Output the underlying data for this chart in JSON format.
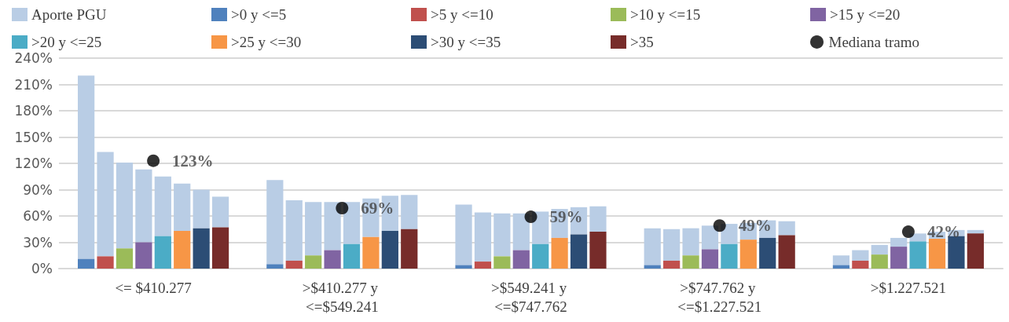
{
  "chart_data": {
    "type": "bar",
    "categories": [
      "<= $410.277",
      ">$410.277 y <=$549.241",
      ">$549.241 y <=$747.762",
      ">$747.762 y <=$1.227.521",
      ">$1.227.521"
    ],
    "ylim": [
      0,
      240
    ],
    "yticks": [
      {
        "value": 0,
        "label": "0%"
      },
      {
        "value": 30,
        "label": "30%"
      },
      {
        "value": 60,
        "label": "60%"
      },
      {
        "value": 90,
        "label": "90%"
      },
      {
        "value": 120,
        "label": "120%"
      },
      {
        "value": 150,
        "label": "150%"
      },
      {
        "value": 180,
        "label": "180%"
      },
      {
        "value": 210,
        "label": "210%"
      },
      {
        "value": 240,
        "label": "240%"
      }
    ],
    "grid": "y",
    "legend": "top",
    "series": [
      {
        "name": "Aporte PGU",
        "color": "#b9cde5",
        "base": [
          11,
          5,
          4,
          4,
          4
        ],
        "values": [
          209,
          96,
          69,
          42,
          11
        ]
      },
      {
        "color": "#b9cde5",
        "base": [
          14,
          9,
          8,
          9,
          9
        ],
        "values": [
          119,
          69,
          56,
          36,
          12
        ]
      },
      {
        "color": "#b9cde5",
        "base": [
          23,
          15,
          14,
          15,
          16
        ],
        "values": [
          98,
          61,
          49,
          31,
          11
        ]
      },
      {
        "color": "#b9cde5",
        "base": [
          30,
          21,
          21,
          22,
          25
        ],
        "values": [
          83,
          55,
          42,
          27,
          10
        ]
      },
      {
        "color": "#b9cde5",
        "base": [
          37,
          28,
          28,
          28,
          31
        ],
        "values": [
          68,
          48,
          37,
          23,
          9
        ]
      },
      {
        "color": "#b9cde5",
        "base": [
          43,
          36,
          35,
          33,
          34
        ],
        "values": [
          54,
          44,
          33,
          19,
          8
        ]
      },
      {
        "color": "#b9cde5",
        "base": [
          46,
          43,
          39,
          35,
          37
        ],
        "values": [
          44,
          40,
          31,
          20,
          7
        ]
      },
      {
        "color": "#b9cde5",
        "base": [
          47,
          45,
          42,
          38,
          40
        ],
        "values": [
          35,
          39,
          29,
          16,
          4
        ]
      },
      {
        "name": ">0 y <=5",
        "color": "#4f81bd",
        "values": [
          11,
          5,
          4,
          4,
          4
        ]
      },
      {
        "name": ">5 y <=10",
        "color": "#c0504d",
        "values": [
          14,
          9,
          8,
          9,
          9
        ]
      },
      {
        "name": ">10 y <=15",
        "color": "#9bbb59",
        "values": [
          23,
          15,
          14,
          15,
          16
        ]
      },
      {
        "name": ">15 y <=20",
        "color": "#8064a2",
        "values": [
          30,
          21,
          21,
          22,
          25
        ]
      },
      {
        "name": ">20 y <=25",
        "color": "#4bacc6",
        "values": [
          37,
          28,
          28,
          28,
          31
        ]
      },
      {
        "name": ">25 y <=30",
        "color": "#f79646",
        "values": [
          43,
          36,
          35,
          33,
          34
        ]
      },
      {
        "name": ">30 y <=35",
        "color": "#2c4d75",
        "values": [
          46,
          43,
          39,
          35,
          37
        ]
      },
      {
        "name": ">35",
        "color": "#772c2a",
        "values": [
          47,
          45,
          42,
          38,
          40
        ]
      },
      {
        "name": "Mediana tramo",
        "type": "scatter",
        "marker": "circle",
        "color": "#000000",
        "x": [
          "<= $410.277",
          ">$410.277 y <=$549.241",
          ">$549.241 y <=$747.762",
          ">$747.762 y <=$1.227.521",
          ">$1.227.521"
        ],
        "values": [
          123,
          69,
          59,
          49,
          42
        ],
        "value_labels": [
          "123%",
          "69%",
          "59%",
          "49%",
          "42%"
        ]
      }
    ]
  }
}
